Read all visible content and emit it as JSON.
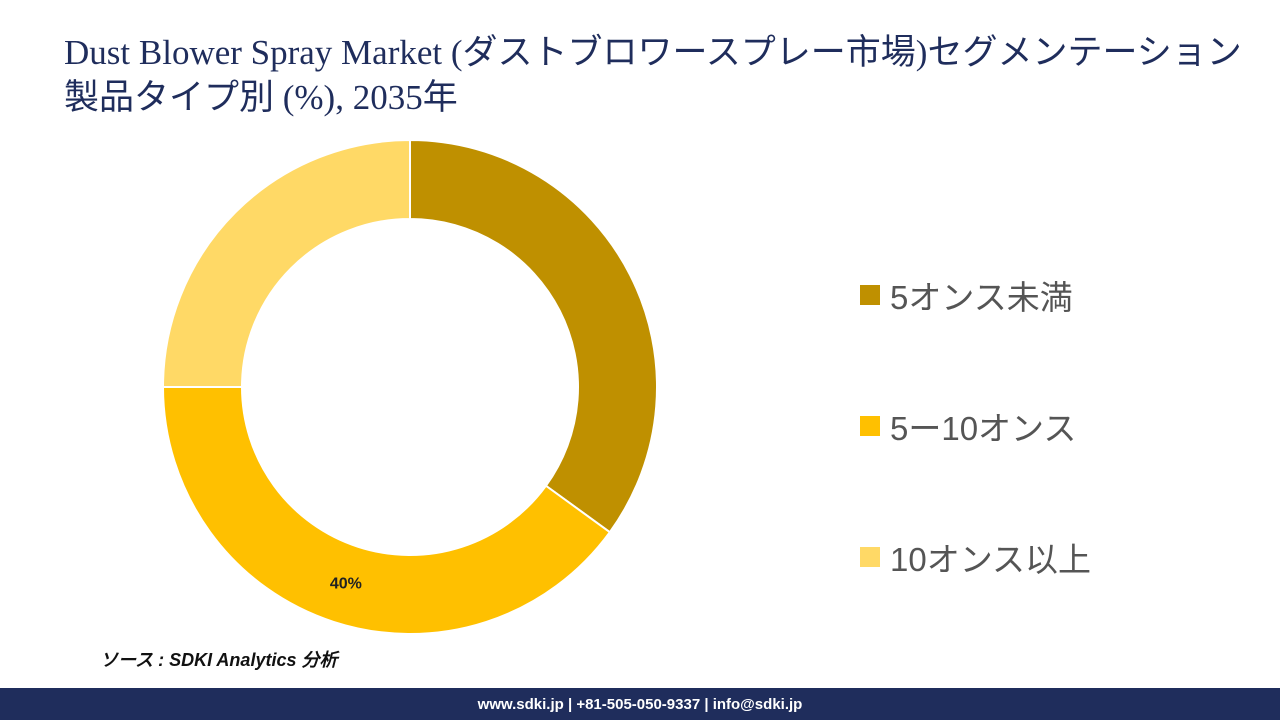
{
  "title": "Dust Blower Spray Market (ダストブロワースプレー市場)セグメンテーション製品タイプ別 (%), 2035年",
  "chart_data": {
    "type": "pie",
    "style": "donut",
    "legend_position": "right",
    "series": [
      {
        "name": "5オンス未満",
        "value": 35,
        "color": "#bf9000",
        "label": ""
      },
      {
        "name": "5ー10オンス",
        "value": 40,
        "color": "#ffc000",
        "label": "40%"
      },
      {
        "name": "10オンス以上",
        "value": 25,
        "color": "#ffd966",
        "label": ""
      }
    ]
  },
  "source": "ソース : SDKI Analytics 分析",
  "footer": "www.sdki.jp | +81-505-050-9337 | info@sdki.jp"
}
